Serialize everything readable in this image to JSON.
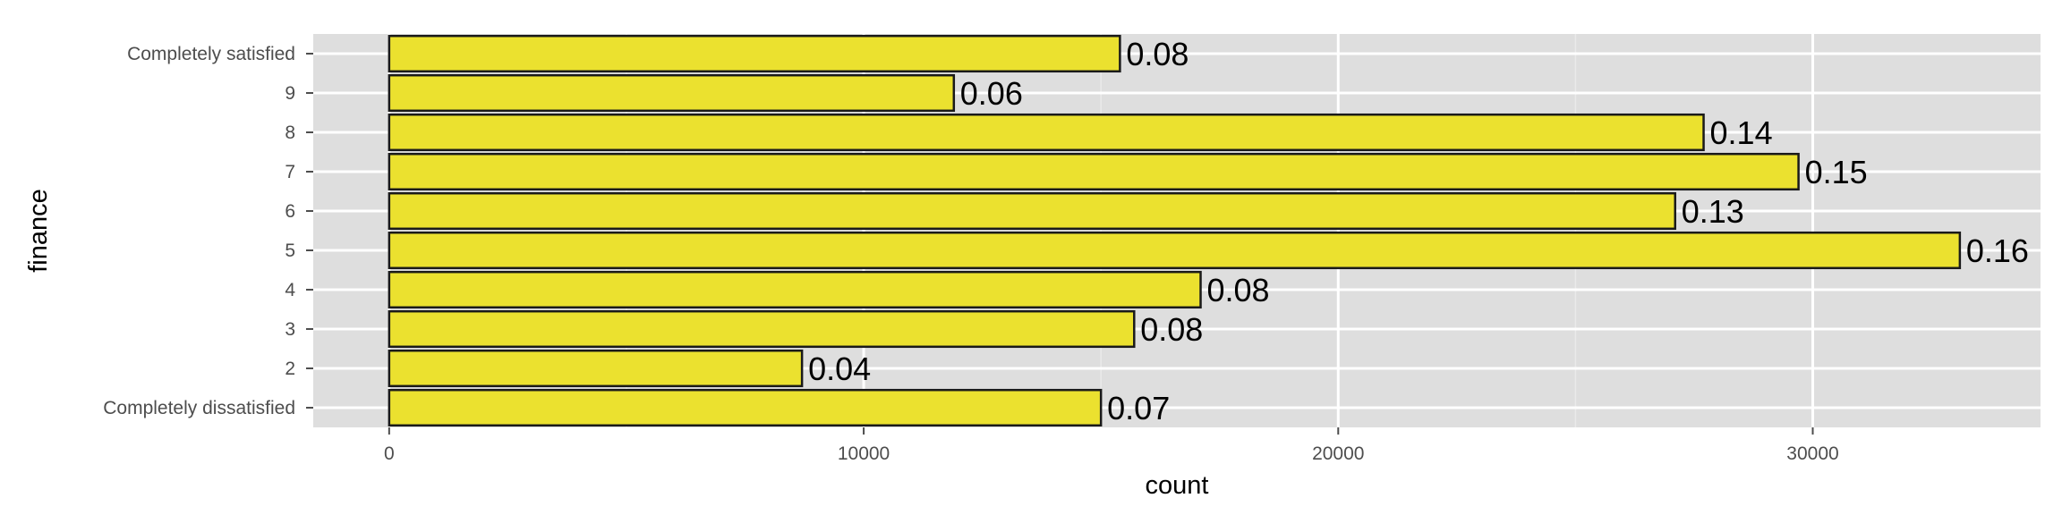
{
  "chart_data": {
    "type": "bar",
    "orientation": "horizontal",
    "title": "",
    "xlabel": "count",
    "ylabel": "finance",
    "categories": [
      "Completely dissatisfied",
      "2",
      "3",
      "4",
      "5",
      "6",
      "7",
      "8",
      "9",
      "Completely satisfied"
    ],
    "values": [
      15000,
      8700,
      15700,
      17100,
      33100,
      27100,
      29700,
      27700,
      11900,
      15400
    ],
    "data_labels": [
      "0.07",
      "0.04",
      "0.08",
      "0.08",
      "0.16",
      "0.13",
      "0.15",
      "0.14",
      "0.06",
      "0.08"
    ],
    "xlim": [
      -1600,
      34800
    ],
    "x_ticks": [
      0,
      10000,
      20000,
      30000
    ],
    "x_tick_labels": [
      "0",
      "10000",
      "20000",
      "30000"
    ],
    "grid": true,
    "legend": "none",
    "colors": {
      "bar_fill": "#ebe12f",
      "bar_stroke": "#1a1a1a",
      "panel_background": "#dedede",
      "grid_major": "#ffffff",
      "grid_minor": "#eaeaea"
    }
  }
}
